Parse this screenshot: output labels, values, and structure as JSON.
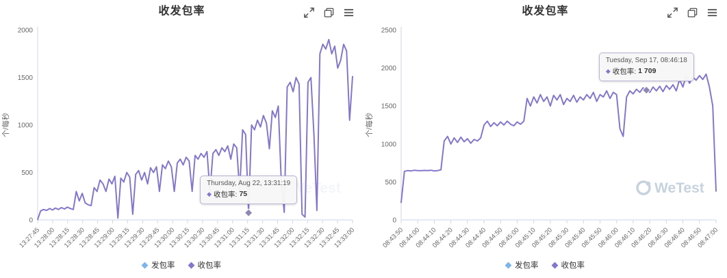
{
  "chart_data": [
    {
      "type": "line",
      "title": "收发包率",
      "y_axis_title": "个/每秒",
      "watermark": "WeTest",
      "ylim": [
        0,
        2000
      ],
      "y_ticks": [
        0,
        500,
        1000,
        1500,
        2000
      ],
      "x_tick_labels": [
        "13:27:45",
        "13:28:00",
        "13:28:15",
        "13:28:30",
        "13:28:45",
        "13:29:00",
        "13:29:15",
        "13:29:30",
        "13:29:45",
        "13:30:00",
        "13:30:15",
        "13:30:30",
        "13:30:45",
        "13:31:00",
        "13:31:15",
        "13:31:30",
        "13:31:45",
        "13:32:00",
        "13:32:15",
        "13:32:30",
        "13:32:45",
        "13:33:00"
      ],
      "legend": [
        {
          "label": "发包率",
          "color": "#7cb5ec"
        },
        {
          "label": "收包率",
          "color": "#8477cb"
        }
      ],
      "series": [
        {
          "name": "收包率",
          "color": "#8477cb",
          "values": [
            5,
            95,
            110,
            100,
            120,
            105,
            125,
            110,
            130,
            115,
            135,
            120,
            110,
            300,
            200,
            280,
            180,
            160,
            150,
            340,
            300,
            420,
            380,
            300,
            430,
            380,
            460,
            20,
            440,
            400,
            500,
            450,
            60,
            480,
            520,
            420,
            500,
            380,
            550,
            500,
            560,
            300,
            580,
            540,
            620,
            560,
            300,
            600,
            640,
            580,
            660,
            620,
            300,
            680,
            640,
            700,
            660,
            720,
            300,
            700,
            740,
            680,
            760,
            720,
            780,
            640,
            800,
            760,
            300,
            950,
            900,
            75,
            1000,
            950,
            1050,
            980,
            1100,
            1020,
            750,
            1150,
            1080,
            1200,
            420,
            80,
            1400,
            1450,
            1350,
            1500,
            1430,
            60,
            30,
            1450,
            1500,
            900,
            100,
            1750,
            1850,
            1800,
            1900,
            1750,
            1830,
            1600,
            1680,
            1850,
            1780,
            1050,
            1510
          ]
        }
      ],
      "tooltip": {
        "header": "Thursday, Aug 22, 13:31:19",
        "series_label": "收包率:",
        "value": "75",
        "anchor_index": 71,
        "anchor_value": 75
      },
      "toolbar_icons": [
        "fullscreen-icon",
        "clone-icon",
        "menu-icon"
      ]
    },
    {
      "type": "line",
      "title": "收发包率",
      "y_axis_title": "个/每秒",
      "watermark": "WeTest",
      "ylim": [
        0,
        2500
      ],
      "y_ticks": [
        0,
        500,
        1000,
        1500,
        2000,
        2500
      ],
      "x_tick_labels": [
        "08:43:50",
        "08:44:00",
        "08:44:10",
        "08:44:20",
        "08:44:30",
        "08:44:40",
        "08:44:50",
        "08:45:00",
        "08:45:10",
        "08:45:20",
        "08:45:30",
        "08:45:40",
        "08:45:50",
        "08:46:00",
        "08:46:10",
        "08:46:20",
        "08:46:30",
        "08:46:40",
        "08:46:50",
        "08:47:00"
      ],
      "legend": [
        {
          "label": "发包率",
          "color": "#7cb5ec"
        },
        {
          "label": "收包率",
          "color": "#8477cb"
        }
      ],
      "series": [
        {
          "name": "收包率",
          "color": "#8477cb",
          "values": [
            230,
            640,
            650,
            645,
            655,
            650,
            648,
            652,
            650,
            655,
            645,
            650,
            660,
            1040,
            1100,
            1000,
            1080,
            1020,
            1090,
            1030,
            1070,
            1010,
            1060,
            1040,
            1080,
            1250,
            1300,
            1230,
            1280,
            1240,
            1290,
            1250,
            1300,
            1260,
            1240,
            1290,
            1260,
            1300,
            1600,
            1500,
            1620,
            1540,
            1650,
            1560,
            1620,
            1500,
            1640,
            1580,
            1650,
            1520,
            1600,
            1560,
            1640,
            1550,
            1620,
            1580,
            1650,
            1600,
            1680,
            1560,
            1650,
            1620,
            1700,
            1600,
            1680,
            1650,
            1200,
            1100,
            1620,
            1700,
            1660,
            1720,
            1680,
            1740,
            1709,
            1680,
            1750,
            1700,
            1760,
            1690,
            1770,
            1720,
            1780,
            1700,
            1850,
            1750,
            1900,
            1800,
            1880,
            1840,
            1900,
            1850,
            1920,
            1750,
            1500,
            380
          ]
        }
      ],
      "tooltip": {
        "header": "Tuesday, Sep 17, 08:46:18",
        "series_label": "收包率:",
        "value": "1 709",
        "anchor_index": 74,
        "anchor_value": 1709
      },
      "toolbar_icons": [
        "fullscreen-icon",
        "clone-icon",
        "menu-icon"
      ]
    }
  ]
}
